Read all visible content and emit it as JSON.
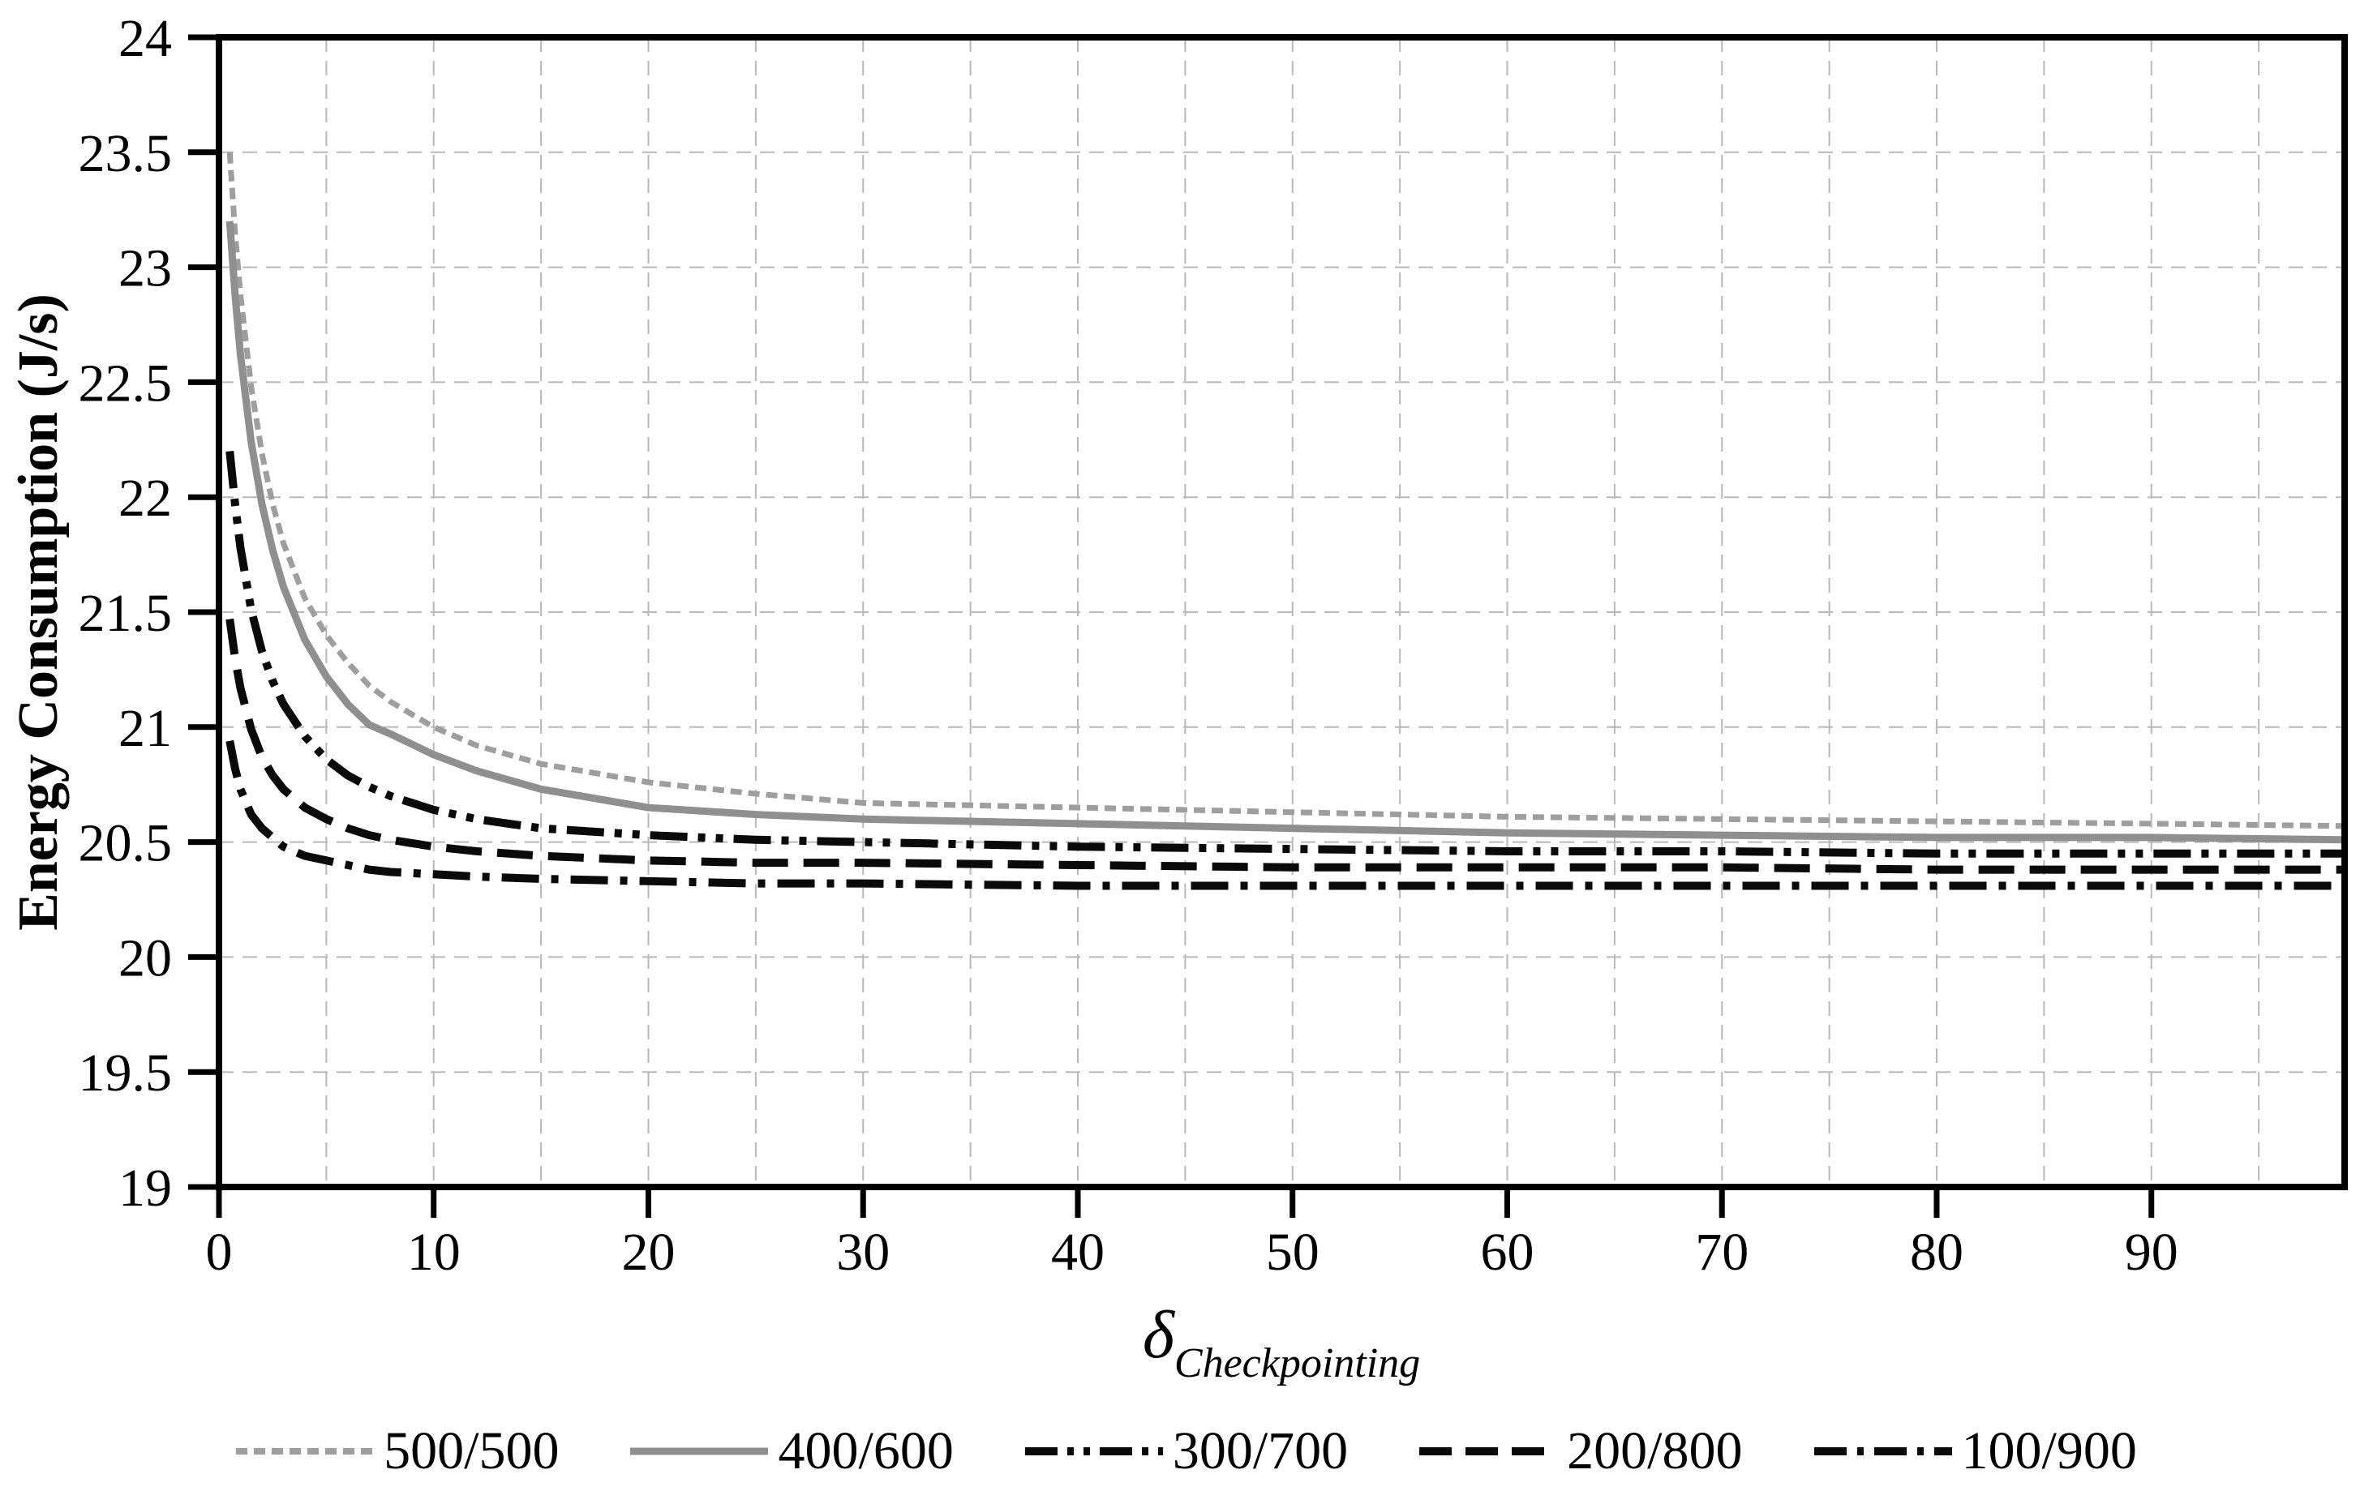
{
  "figure": {
    "background": "#ffffff",
    "frame_color": "#000000"
  },
  "chart_data": {
    "type": "line",
    "title": "",
    "ylabel": "Energy Consumption (J/s)",
    "xlabel": {
      "symbol": "δ",
      "subscript": "Checkpointing"
    },
    "xlim": [
      0,
      99
    ],
    "ylim": [
      19,
      24
    ],
    "x_ticks": [
      0,
      10,
      20,
      30,
      40,
      50,
      60,
      70,
      80,
      90
    ],
    "y_ticks": [
      19,
      19.5,
      20,
      20.5,
      21,
      21.5,
      22,
      22.5,
      23,
      23.5,
      24
    ],
    "grid": {
      "on": true,
      "style": "dashed",
      "color": "#b8b8b8",
      "x_minor_step": 5,
      "y_step": 0.5
    },
    "legend_position": "bottom",
    "x": [
      0.5,
      0.75,
      1,
      1.5,
      2,
      2.5,
      3,
      4,
      5,
      6,
      7,
      8,
      10,
      12,
      15,
      20,
      25,
      30,
      40,
      50,
      60,
      70,
      80,
      90,
      99
    ],
    "series": [
      {
        "name": "500/500",
        "color": "#9e9e9e",
        "dash": "14 8",
        "line_width": 7,
        "legend_dash": "14 8",
        "values": [
          23.5,
          23.15,
          22.88,
          22.48,
          22.19,
          21.97,
          21.8,
          21.56,
          21.4,
          21.28,
          21.18,
          21.11,
          21.0,
          20.92,
          20.84,
          20.76,
          20.71,
          20.67,
          20.65,
          20.63,
          20.61,
          20.6,
          20.59,
          20.58,
          20.57
        ]
      },
      {
        "name": "400/600",
        "color": "#8f8f8f",
        "dash": "",
        "line_width": 9,
        "legend_dash": "",
        "values": [
          23.2,
          22.88,
          22.62,
          22.24,
          21.97,
          21.77,
          21.61,
          21.38,
          21.22,
          21.1,
          21.01,
          20.97,
          20.88,
          20.81,
          20.73,
          20.65,
          20.62,
          20.6,
          20.58,
          20.56,
          20.54,
          20.53,
          20.52,
          20.52,
          20.51
        ]
      },
      {
        "name": "300/700",
        "color": "#0a0a0a",
        "dash": "46 13 9 13 9 13",
        "line_width": 10,
        "legend_dash": "40 12 8 12 8 12",
        "values": [
          22.2,
          21.97,
          21.78,
          21.51,
          21.33,
          21.2,
          21.1,
          20.96,
          20.86,
          20.79,
          20.74,
          20.7,
          20.64,
          20.6,
          20.56,
          20.53,
          20.51,
          20.5,
          20.48,
          20.47,
          20.46,
          20.46,
          20.45,
          20.45,
          20.45
        ]
      },
      {
        "name": "200/800",
        "color": "#0a0a0a",
        "dash": "44 19",
        "line_width": 10,
        "legend_dash": "40 17",
        "values": [
          21.47,
          21.3,
          21.17,
          20.99,
          20.87,
          20.79,
          20.73,
          20.65,
          20.6,
          20.56,
          20.53,
          20.51,
          20.48,
          20.46,
          20.44,
          20.42,
          20.41,
          20.41,
          20.4,
          20.39,
          20.39,
          20.39,
          20.38,
          20.38,
          20.38
        ]
      },
      {
        "name": "100/900",
        "color": "#0a0a0a",
        "dash": "46 15 9 15",
        "line_width": 10,
        "legend_dash": "40 13 8 13",
        "values": [
          20.94,
          20.82,
          20.73,
          20.62,
          20.56,
          20.52,
          20.48,
          20.44,
          20.42,
          20.4,
          20.38,
          20.37,
          20.36,
          20.35,
          20.34,
          20.33,
          20.32,
          20.32,
          20.31,
          20.31,
          20.31,
          20.31,
          20.31,
          20.31,
          20.31
        ]
      }
    ]
  }
}
